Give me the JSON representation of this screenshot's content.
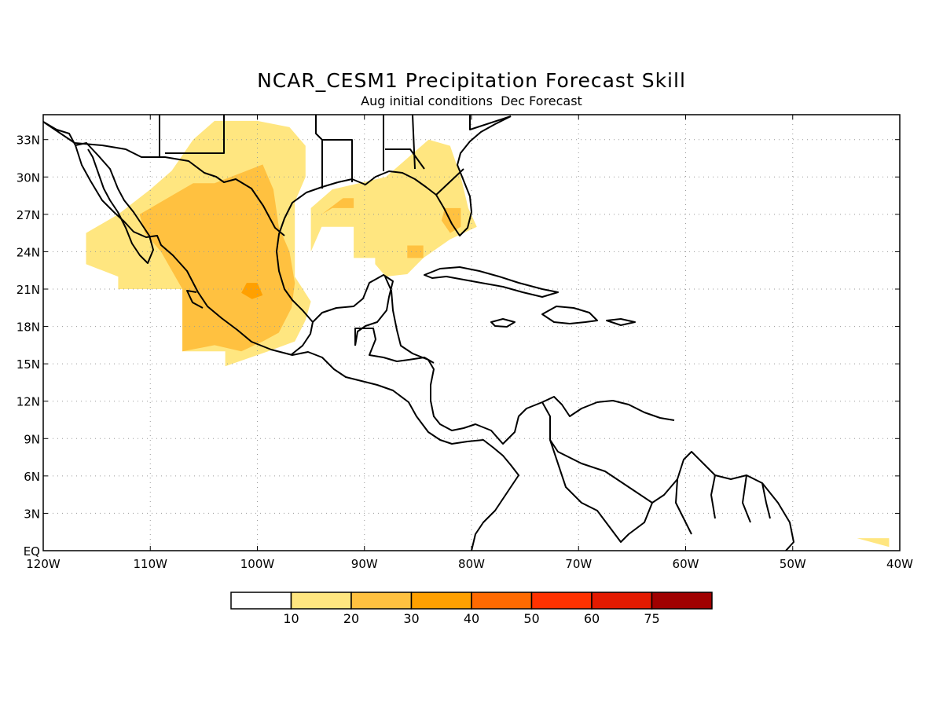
{
  "title": "NCAR_CESM1 Precipitation Forecast Skill",
  "subtitle": "Aug initial conditions  Dec Forecast",
  "colors": {
    "frame": "#000000",
    "grid": "#9a9a9a",
    "coast": "#000000",
    "land_fill": "#ffffff"
  },
  "map": {
    "lon_range": [
      -120,
      -40
    ],
    "lat_range": [
      0,
      35
    ],
    "x_ticks": [
      {
        "lon": -120,
        "label": "120W"
      },
      {
        "lon": -110,
        "label": "110W"
      },
      {
        "lon": -100,
        "label": "100W"
      },
      {
        "lon": -90,
        "label": "90W"
      },
      {
        "lon": -80,
        "label": "80W"
      },
      {
        "lon": -70,
        "label": "70W"
      },
      {
        "lon": -60,
        "label": "60W"
      },
      {
        "lon": -50,
        "label": "50W"
      },
      {
        "lon": -40,
        "label": "40W"
      }
    ],
    "y_ticks": [
      {
        "lat": 0,
        "label": "EQ"
      },
      {
        "lat": 3,
        "label": "3N"
      },
      {
        "lat": 6,
        "label": "6N"
      },
      {
        "lat": 9,
        "label": "9N"
      },
      {
        "lat": 12,
        "label": "12N"
      },
      {
        "lat": 15,
        "label": "15N"
      },
      {
        "lat": 18,
        "label": "18N"
      },
      {
        "lat": 21,
        "label": "21N"
      },
      {
        "lat": 24,
        "label": "24N"
      },
      {
        "lat": 27,
        "label": "27N"
      },
      {
        "lat": 30,
        "label": "30N"
      },
      {
        "lat": 33,
        "label": "33N"
      }
    ],
    "gridlines": "dotted"
  },
  "legend": {
    "labels": [
      "10",
      "20",
      "30",
      "40",
      "50",
      "60",
      "75"
    ],
    "colors": [
      "#ffffff",
      "#ffe680",
      "#ffc140",
      "#ffa000",
      "#ff6a00",
      "#ff3200",
      "#e31a00",
      "#a00000"
    ]
  },
  "skill_regions": [
    {
      "name": "mexico-10-20",
      "level_color": "#ffe680",
      "coords": [
        [
          -116,
          24
        ],
        [
          -116,
          25.5
        ],
        [
          -113,
          27
        ],
        [
          -110,
          29
        ],
        [
          -108,
          30.5
        ],
        [
          -106,
          33
        ],
        [
          -104,
          34.5
        ],
        [
          -100,
          34.5
        ],
        [
          -97,
          34
        ],
        [
          -95.5,
          32.5
        ],
        [
          -95.5,
          30
        ],
        [
          -96.5,
          28
        ],
        [
          -96.5,
          25
        ],
        [
          -96.5,
          22
        ],
        [
          -95,
          20
        ],
        [
          -95.5,
          18.5
        ],
        [
          -96.5,
          16.8
        ],
        [
          -99,
          16
        ],
        [
          -103,
          14.8
        ],
        [
          -103,
          16
        ],
        [
          -107,
          16
        ],
        [
          -107,
          21
        ],
        [
          -110,
          21
        ],
        [
          -113,
          21
        ],
        [
          -113,
          22
        ],
        [
          -116,
          23
        ]
      ]
    },
    {
      "name": "mexico-20-30",
      "level_color": "#ffc140",
      "coords": [
        [
          -111,
          27
        ],
        [
          -108,
          28.5
        ],
        [
          -106,
          29.5
        ],
        [
          -104,
          29.5
        ],
        [
          -101,
          30.5
        ],
        [
          -99.5,
          31
        ],
        [
          -98.5,
          29
        ],
        [
          -98,
          26
        ],
        [
          -97,
          24
        ],
        [
          -96.5,
          21.5
        ],
        [
          -96.8,
          19.5
        ],
        [
          -98,
          17.5
        ],
        [
          -99.5,
          16.8
        ],
        [
          -101.5,
          16
        ],
        [
          -104,
          16.5
        ],
        [
          -107,
          16
        ],
        [
          -107,
          21
        ],
        [
          -108,
          22.5
        ],
        [
          -109,
          24
        ],
        [
          -110.5,
          25.5
        ]
      ]
    },
    {
      "name": "mexico-30-40",
      "level_color": "#ffa000",
      "coords": [
        [
          -101,
          21.5
        ],
        [
          -100,
          21.5
        ],
        [
          -99.5,
          20.5
        ],
        [
          -100.5,
          20.2
        ],
        [
          -101.5,
          20.7
        ]
      ]
    },
    {
      "name": "gulf-10-20",
      "level_color": "#ffe680",
      "coords": [
        [
          -95,
          27.5
        ],
        [
          -93,
          29
        ],
        [
          -90.5,
          29.5
        ],
        [
          -88,
          30
        ],
        [
          -86,
          31.5
        ],
        [
          -84,
          33
        ],
        [
          -82,
          32.5
        ],
        [
          -81,
          30
        ],
        [
          -80.3,
          27.5
        ],
        [
          -79.5,
          26
        ],
        [
          -82,
          25
        ],
        [
          -84.5,
          23.5
        ],
        [
          -86,
          22.2
        ],
        [
          -88,
          22
        ],
        [
          -89,
          23
        ],
        [
          -89,
          25
        ],
        [
          -88,
          26
        ],
        [
          -88,
          28
        ],
        [
          -86,
          28
        ],
        [
          -86,
          23.5
        ],
        [
          -91,
          23.5
        ],
        [
          -91,
          26
        ],
        [
          -94,
          26
        ],
        [
          -95,
          24
        ]
      ]
    },
    {
      "name": "gulf-20-30",
      "level_color": "#ffc140",
      "coords": [
        [
          -94,
          27
        ],
        [
          -92,
          28.3
        ],
        [
          -91,
          28.3
        ],
        [
          -91,
          27.5
        ],
        [
          -93,
          27.5
        ]
      ]
    },
    {
      "name": "florida-20-30",
      "level_color": "#ffc140",
      "coords": [
        [
          -82.5,
          27.5
        ],
        [
          -81,
          27.5
        ],
        [
          -81,
          26
        ],
        [
          -82,
          25.5
        ],
        [
          -82.8,
          26.5
        ]
      ]
    },
    {
      "name": "gulf-small-20-30",
      "level_color": "#ffc140",
      "coords": [
        [
          -86,
          24.5
        ],
        [
          -84.5,
          24.5
        ],
        [
          -84.5,
          23.5
        ],
        [
          -86,
          23.5
        ]
      ]
    },
    {
      "name": "atlantic-10-20",
      "level_color": "#ffe680",
      "coords": [
        [
          -44,
          1
        ],
        [
          -41,
          1
        ],
        [
          -41,
          0.3
        ],
        [
          -44,
          1
        ]
      ]
    }
  ]
}
